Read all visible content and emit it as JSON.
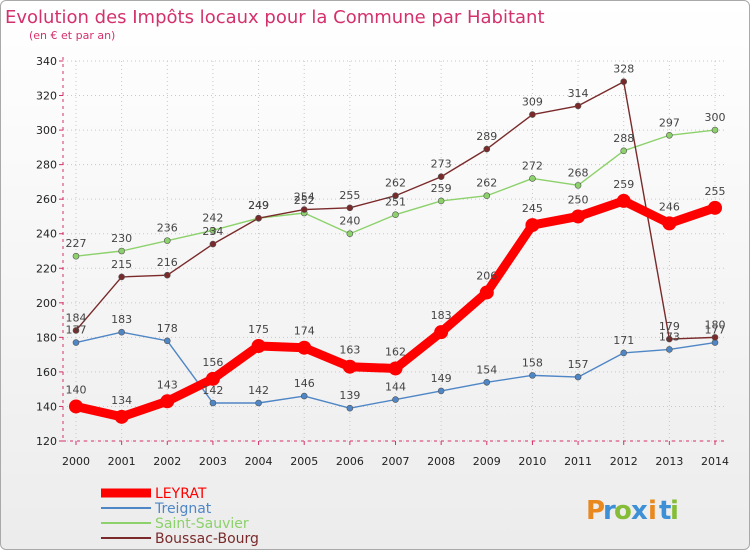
{
  "chart_data": {
    "type": "line",
    "title": "Evolution des Impôts locaux pour la Commune par Habitant",
    "subtitle": "(en € et par an)",
    "x": [
      2000,
      2001,
      2002,
      2003,
      2004,
      2005,
      2006,
      2007,
      2008,
      2009,
      2010,
      2011,
      2012,
      2013,
      2014
    ],
    "ylim": [
      120,
      340
    ],
    "yticks": [
      120,
      140,
      160,
      180,
      200,
      220,
      240,
      260,
      280,
      300,
      320,
      340
    ],
    "grid": true,
    "legend_position": "bottom-left",
    "series": [
      {
        "name": "LEYRAT",
        "color": "#ff0000",
        "values": [
          140,
          134,
          143,
          156,
          175,
          174,
          163,
          162,
          183,
          206,
          245,
          250,
          259,
          246,
          255
        ],
        "labels": [
          "140",
          "134",
          "143",
          "156",
          "175",
          "174",
          "163",
          "162",
          "183",
          "206",
          "245",
          "250",
          "259",
          "246",
          "255"
        ]
      },
      {
        "name": "Treignat",
        "color": "#4f86c6",
        "values": [
          177,
          183,
          178,
          142,
          142,
          146,
          139,
          144,
          149,
          154,
          158,
          157,
          171,
          173,
          177
        ],
        "labels": [
          "177",
          "183",
          "178",
          "142",
          "142",
          "146",
          "139",
          "144",
          "149",
          "154",
          "158",
          "157",
          "171",
          "173",
          "177"
        ]
      },
      {
        "name": "Saint-Sauvier",
        "color": "#8cd16b",
        "values": [
          227,
          230,
          236,
          242,
          249,
          252,
          240,
          251,
          259,
          262,
          272,
          268,
          288,
          297,
          300
        ],
        "labels": [
          "227",
          "230",
          "236",
          "242",
          "249",
          "252",
          "240",
          "251",
          "259",
          "262",
          "272",
          "268",
          "288",
          "297",
          "300"
        ]
      },
      {
        "name": "Boussac-Bourg",
        "color": "#7a2a2a",
        "values": [
          184,
          215,
          216,
          234,
          249,
          254,
          255,
          262,
          273,
          289,
          309,
          314,
          328,
          179,
          180
        ],
        "labels": [
          "184",
          "215",
          "216",
          "234",
          "249",
          "254",
          "255",
          "262",
          "273",
          "289",
          "309",
          "314",
          "328",
          "179",
          "180"
        ]
      }
    ]
  },
  "brand": {
    "letters": [
      "P",
      "r",
      "o",
      "x",
      "i",
      "t",
      "i"
    ],
    "colors": [
      "#e8881f",
      "#3d8fd6",
      "#86bd38",
      "#3d8fd6",
      "#e8881f",
      "#3d8fd6",
      "#86bd38"
    ]
  }
}
